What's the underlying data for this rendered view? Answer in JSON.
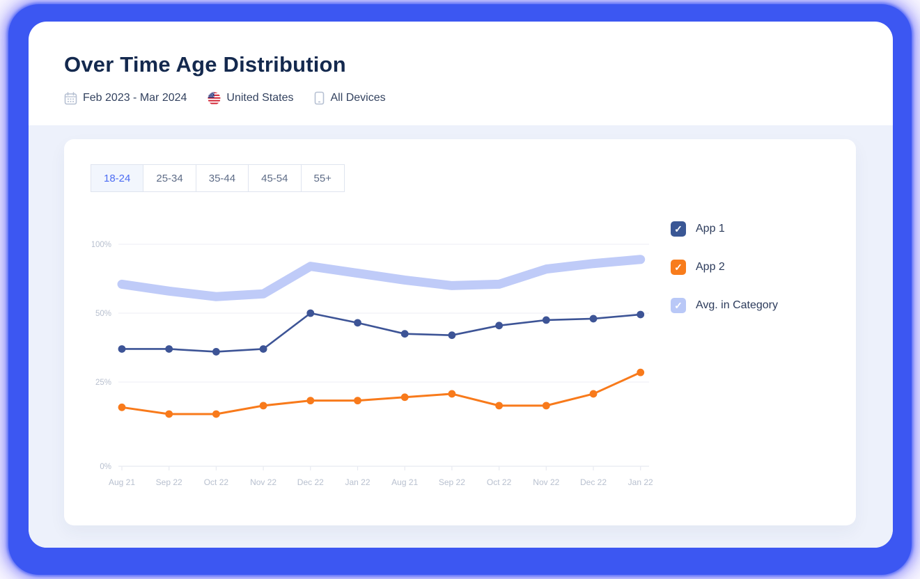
{
  "header": {
    "title": "Over Time Age Distribution",
    "date_range": "Feb 2023 - Mar 2024",
    "country": "United States",
    "devices": "All Devices"
  },
  "icons": {
    "calendar": "calendar-icon",
    "flag": "us-flag-icon",
    "device": "mobile-device-icon",
    "checkmark_glyph": "✓"
  },
  "tabs": [
    {
      "label": "18-24",
      "active": true
    },
    {
      "label": "25-34",
      "active": false
    },
    {
      "label": "35-44",
      "active": false
    },
    {
      "label": "45-54",
      "active": false
    },
    {
      "label": "55+",
      "active": false
    }
  ],
  "legend": [
    {
      "label": "App 1",
      "color": "#3a5795",
      "checked": true
    },
    {
      "label": "App 2",
      "color": "#f87c1c",
      "checked": true
    },
    {
      "label": "Avg. in Category",
      "color": "#b9c8f7",
      "checked": true
    }
  ],
  "chart_data": {
    "type": "line",
    "categories": [
      "Aug 21",
      "Sep 22",
      "Oct 22",
      "Nov 22",
      "Dec 22",
      "Jan 22",
      "Aug 21",
      "Sep 22",
      "Oct 22",
      "Nov 22",
      "Dec 22",
      "Jan 22"
    ],
    "series": [
      {
        "name": "Avg. in Category",
        "color": "#bfcbf8",
        "style": "band",
        "values": [
          71,
          66,
          62,
          64,
          84,
          79,
          74,
          70,
          71,
          82,
          86,
          89
        ]
      },
      {
        "name": "App 1",
        "color": "#3d5496",
        "style": "line-dots",
        "values": [
          37,
          37,
          36,
          37,
          50,
          46.5,
          42.5,
          42,
          45.5,
          47.5,
          48,
          49.5
        ]
      },
      {
        "name": "App 2",
        "color": "#f87a1b",
        "style": "line-dots",
        "values": [
          17.5,
          15.5,
          15.5,
          18,
          19.5,
          19.5,
          20.5,
          21.5,
          18,
          18,
          21.5,
          28.5
        ]
      }
    ],
    "y_ticks": [
      {
        "label": "0%",
        "value": 0
      },
      {
        "label": "25%",
        "value": 25
      },
      {
        "label": "50%",
        "value": 50
      },
      {
        "label": "100%",
        "value": 100
      }
    ],
    "ylim": [
      0,
      100
    ],
    "grid": true,
    "legend_position": "right",
    "xlabel": "",
    "ylabel": ""
  },
  "colors": {
    "frame_blue": "#3c57f2",
    "section_bg": "#edf1fb",
    "title_text": "#14294e",
    "meta_text": "#33425f",
    "tab_active_text": "#4c6cf3",
    "tab_inactive_text": "#5e6c87",
    "axis_label": "#b8c0cf",
    "gridline": "#f0f1f6",
    "axis_line": "#e7eaf1"
  }
}
